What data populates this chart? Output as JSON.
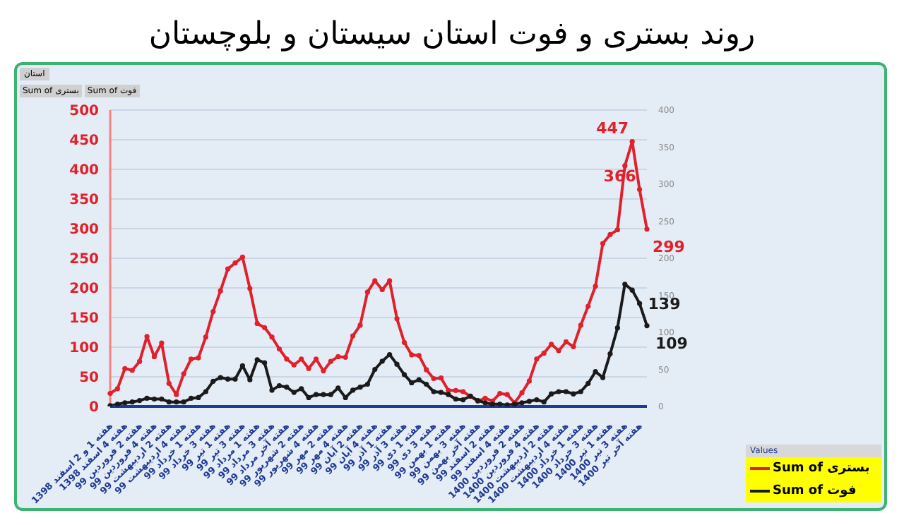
{
  "chart_data": {
    "type": "line",
    "title": "روند بستری و فوت استان سیستان و بلوچستان",
    "annotations": [
      "استان",
      "Sum of بستری",
      "Sum of فوت"
    ],
    "categories": [
      "هفته 1 و 2 اسفند 1398",
      null,
      "هفته 4 اسفند 1398",
      null,
      "هفته 2 فروردین 99",
      null,
      "هفته 4 فروردین 99",
      null,
      "هفته 2 اردیبهشت 99",
      null,
      "هفته 4 اردیبهشت 99",
      null,
      "هفته 1 خرداد 99",
      null,
      "هفته 3 خرداد 99",
      null,
      "هفته 1 تیر 99",
      null,
      "هفته 3 تیر 99",
      null,
      "هفته 1 مرداد 99",
      null,
      "هفته 3 مرداد 99",
      null,
      "هفته آخر مرداد 99",
      null,
      "هفته 2 شهریور 99",
      null,
      "هفته 4 شهریور 99",
      null,
      "هفته 2 مهر 99",
      null,
      "هفته 4 مهر 99",
      null,
      "هفته 2 آبان 99",
      null,
      "هفته 4 آبان 99",
      null,
      "هفته 1 آذر 99",
      null,
      "هفته 3 آذر 99",
      null,
      "هفته 1 دی 99",
      null,
      "هفته 3 دی 99",
      null,
      "هفته 1 بهمن 99",
      null,
      "هفته 3 بهمن 99",
      null,
      "هفته آخر بهمن 99",
      null,
      "هفته 2 اسفند 99",
      null,
      "هفته 4 اسفند 99",
      null,
      "هفته 2 فروردین 1400",
      null,
      "هفته 4 فروردین 1400",
      null,
      "هفته 2 اردیبهشت 1400",
      null,
      "هفته 4 اردیبهشت 1400",
      null,
      "هفته 1 خرداد 1400",
      null,
      "هفته 3 خرداد 1400",
      null,
      "هفته 1 تیر 1400",
      null,
      "هفته 3 تیر 1400",
      null,
      "هفته آخر تیر 1400",
      null
    ],
    "series": [
      {
        "name": "Sum of بستری",
        "color": "#e0202a",
        "axis": "y",
        "values": [
          22,
          30,
          64,
          61,
          76,
          118,
          84,
          107,
          39,
          20,
          55,
          80,
          82,
          117,
          160,
          195,
          232,
          242,
          252,
          199,
          140,
          133,
          117,
          97,
          80,
          70,
          80,
          64,
          80,
          60,
          76,
          84,
          83,
          119,
          137,
          193,
          212,
          197,
          212,
          148,
          108,
          87,
          86,
          62,
          47,
          48,
          27,
          27,
          25,
          17,
          9,
          14,
          9,
          22,
          20,
          6,
          23,
          43,
          80,
          90,
          105,
          94,
          109,
          101,
          137,
          169,
          203,
          275,
          290,
          298,
          406,
          447,
          366,
          299
        ],
        "value_labels": [
          null,
          null,
          null,
          null,
          null,
          null,
          null,
          null,
          null,
          null,
          null,
          null,
          null,
          null,
          null,
          null,
          null,
          null,
          null,
          null,
          null,
          null,
          null,
          null,
          null,
          null,
          null,
          null,
          null,
          null,
          null,
          null,
          null,
          null,
          null,
          null,
          null,
          null,
          null,
          null,
          null,
          null,
          null,
          null,
          null,
          null,
          null,
          null,
          null,
          null,
          null,
          null,
          null,
          null,
          null,
          null,
          null,
          null,
          null,
          null,
          null,
          null,
          null,
          null,
          null,
          null,
          null,
          null,
          null,
          null,
          null,
          "447",
          "366",
          "299"
        ]
      },
      {
        "name": "Sum of فوت",
        "color": "#1a1a1a",
        "axis": "y2",
        "values": [
          1,
          3,
          5,
          6,
          8,
          11,
          10,
          10,
          6,
          6,
          6,
          11,
          12,
          20,
          34,
          39,
          37,
          37,
          55,
          36,
          63,
          59,
          22,
          28,
          26,
          19,
          24,
          12,
          16,
          16,
          16,
          25,
          12,
          22,
          26,
          30,
          50,
          61,
          70,
          57,
          43,
          32,
          36,
          30,
          20,
          19,
          16,
          10,
          9,
          14,
          8,
          5,
          3,
          3,
          2,
          3,
          5,
          7,
          9,
          6,
          17,
          20,
          20,
          17,
          20,
          31,
          47,
          39,
          71,
          106,
          165,
          157,
          139,
          109
        ],
        "value_labels": [
          null,
          null,
          null,
          null,
          null,
          null,
          null,
          null,
          null,
          null,
          null,
          null,
          null,
          null,
          null,
          null,
          null,
          null,
          null,
          null,
          null,
          null,
          null,
          null,
          null,
          null,
          null,
          null,
          null,
          null,
          null,
          null,
          null,
          null,
          null,
          null,
          null,
          null,
          null,
          null,
          null,
          null,
          null,
          null,
          null,
          null,
          null,
          null,
          null,
          null,
          null,
          null,
          null,
          null,
          null,
          null,
          null,
          null,
          null,
          null,
          null,
          null,
          null,
          null,
          null,
          null,
          null,
          null,
          null,
          null,
          null,
          null,
          "139",
          "109"
        ]
      }
    ],
    "ylim": [
      0,
      500
    ],
    "yticks": [
      0,
      50,
      100,
      150,
      200,
      250,
      300,
      350,
      400,
      450,
      500
    ],
    "y2lim": [
      0,
      400
    ],
    "y2ticks": [
      0,
      50,
      100,
      150,
      200,
      250,
      300,
      350,
      400
    ],
    "legend_title": "Values",
    "legend": "bottom right",
    "grid": "y",
    "marker": "circle",
    "line_style": "solid"
  }
}
